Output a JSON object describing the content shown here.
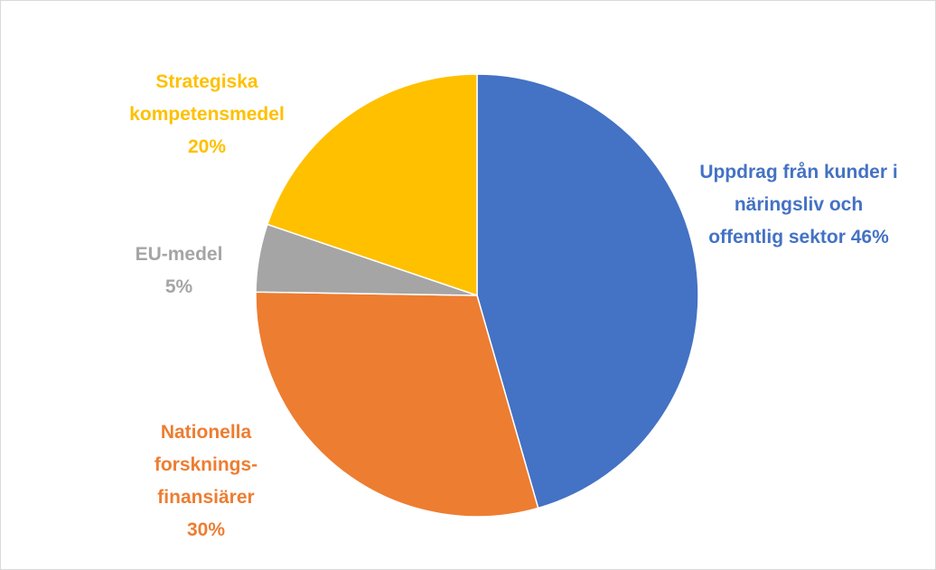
{
  "chart_data": {
    "type": "pie",
    "categories": [
      "Uppdrag från kunder i näringsliv och offentlig sektor",
      "Nationella forsknings-finansiärer",
      "EU-medel",
      "Strategiska kompetensmedel"
    ],
    "values": [
      46,
      30,
      5,
      20
    ],
    "value_labels": [
      "46%",
      "30%",
      "5%",
      "20%"
    ],
    "colors": [
      "#4472c4",
      "#ed7d31",
      "#a5a5a5",
      "#ffc000"
    ]
  }
}
